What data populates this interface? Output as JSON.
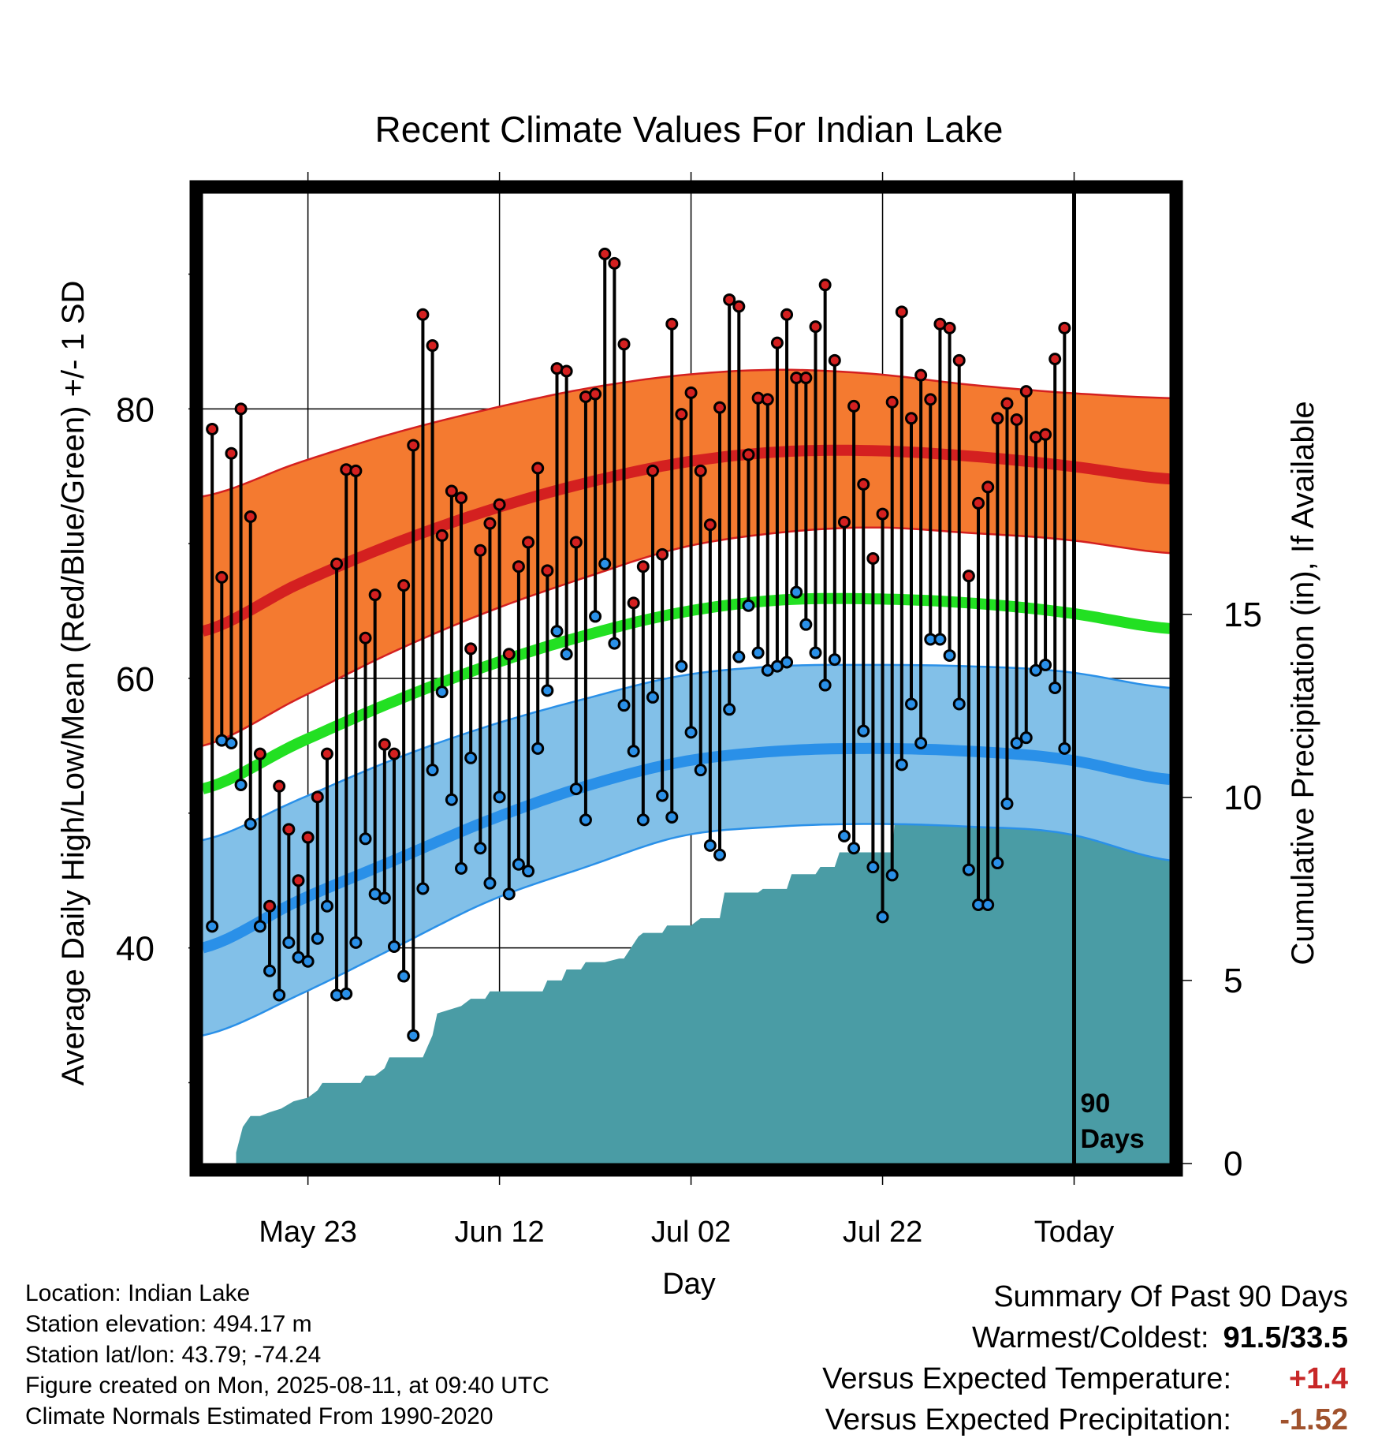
{
  "chart_data": {
    "type": "line",
    "title": "Recent Climate Values For Indian Lake",
    "xlabel": "Day",
    "ylabel": "Average Daily High/Low/Mean (Red/Blue/Green) +/- 1 SD",
    "y2label": "Cumulative Precipitation (in), If Available",
    "ylim": [
      24,
      96
    ],
    "y2lim": [
      0,
      26.5
    ],
    "xlim": [
      0,
      101
    ],
    "x_ticks": [
      {
        "day": 11,
        "label": "May 23"
      },
      {
        "day": 31,
        "label": "Jun 12"
      },
      {
        "day": 51,
        "label": "Jul 02"
      },
      {
        "day": 71,
        "label": "Jul 22"
      },
      {
        "day": 91,
        "label": "Today"
      }
    ],
    "y_ticks": [
      40,
      60,
      80
    ],
    "y_minor_ticks": [
      30,
      50,
      70,
      90
    ],
    "y2_ticks": [
      0,
      5,
      10,
      15
    ],
    "grid": true,
    "today_marker": {
      "day": 91,
      "label_line1": "90",
      "label_line2": "Days"
    },
    "normals": {
      "days": [
        0,
        10,
        20,
        30,
        40,
        50,
        60,
        70,
        80,
        90,
        101
      ],
      "high_mean": [
        63.5,
        67.0,
        70.0,
        72.5,
        74.5,
        76.0,
        76.8,
        76.9,
        76.5,
        75.8,
        74.8
      ],
      "high_upper": [
        73.5,
        76.0,
        78.2,
        80.0,
        81.5,
        82.5,
        82.9,
        82.6,
        81.8,
        81.2,
        80.8
      ],
      "high_lower": [
        55.0,
        58.5,
        62.0,
        65.0,
        67.5,
        69.7,
        70.8,
        71.2,
        70.8,
        70.3,
        69.3
      ],
      "low_mean": [
        40.0,
        43.5,
        46.5,
        49.5,
        52.0,
        53.8,
        54.6,
        54.8,
        54.6,
        54.0,
        52.5
      ],
      "low_upper": [
        48.0,
        51.0,
        54.0,
        56.5,
        58.5,
        60.2,
        60.9,
        61.0,
        60.9,
        60.5,
        59.3
      ],
      "low_lower": [
        33.5,
        36.5,
        40.0,
        43.5,
        46.0,
        48.3,
        49.0,
        49.2,
        49.0,
        48.5,
        46.5
      ],
      "mean_mean": [
        51.8,
        55.2,
        58.3,
        61.0,
        63.2,
        64.9,
        65.8,
        65.9,
        65.6,
        64.9,
        63.7
      ]
    },
    "series": [
      {
        "name": "High",
        "color": "#d42020",
        "values": [
          78.5,
          67.5,
          76.7,
          80.0,
          72.0,
          54.4,
          43.1,
          52.0,
          48.8,
          45.0,
          48.2,
          51.2,
          54.4,
          68.5,
          75.5,
          75.4,
          63.0,
          66.2,
          55.1,
          54.4,
          66.9,
          77.3,
          87.0,
          84.7,
          70.6,
          73.9,
          73.4,
          62.2,
          69.5,
          71.5,
          72.9,
          61.8,
          68.3,
          70.1,
          75.6,
          68.0,
          83.0,
          82.8,
          70.1,
          80.9,
          81.1,
          91.5,
          90.8,
          84.8,
          65.6,
          68.3,
          75.4,
          69.2,
          86.3,
          79.6,
          81.2,
          75.4,
          71.4,
          80.1,
          88.1,
          87.6,
          76.6,
          80.8,
          80.7,
          84.9,
          87.0,
          82.3,
          82.3,
          86.1,
          89.2,
          83.6,
          71.6,
          80.2,
          74.4,
          68.9,
          72.2,
          80.5,
          87.2,
          79.3,
          82.5,
          80.7,
          86.3,
          86.0,
          83.6,
          67.6,
          73.0,
          74.2,
          79.3,
          80.4,
          79.2,
          81.3,
          77.9,
          78.1,
          83.7,
          86.0
        ]
      },
      {
        "name": "Low",
        "color": "#2a90e8",
        "values": [
          41.6,
          55.4,
          55.2,
          52.1,
          49.2,
          41.6,
          38.3,
          36.5,
          40.4,
          39.3,
          39.0,
          40.7,
          43.1,
          36.5,
          36.6,
          40.4,
          48.1,
          44.0,
          43.7,
          40.1,
          37.9,
          33.5,
          44.4,
          53.2,
          59.0,
          51.0,
          45.9,
          54.1,
          47.4,
          44.8,
          51.2,
          44.0,
          46.2,
          45.7,
          54.8,
          59.1,
          63.5,
          61.8,
          51.8,
          49.5,
          64.6,
          68.5,
          62.6,
          58.0,
          54.6,
          49.5,
          58.6,
          51.3,
          49.7,
          60.9,
          56.0,
          53.2,
          47.6,
          46.9,
          57.7,
          61.6,
          65.4,
          61.9,
          60.6,
          60.9,
          61.2,
          66.4,
          64.0,
          61.9,
          59.5,
          61.4,
          48.3,
          47.4,
          56.1,
          46.0,
          42.3,
          45.4,
          53.6,
          58.1,
          55.2,
          62.9,
          62.9,
          61.7,
          58.1,
          45.8,
          43.2,
          43.2,
          46.3,
          50.7,
          55.2,
          55.6,
          60.6,
          61.0,
          59.3,
          54.8
        ]
      },
      {
        "name": "Cumulative Precipitation",
        "color": "#4a9ca5",
        "x": [
          3.5,
          4.2,
          5.0,
          6.0,
          7.0,
          8.2,
          9.5,
          11,
          12,
          12.5,
          14.5,
          16.5,
          17,
          18,
          19,
          19.5,
          23,
          24,
          24.5,
          27,
          28,
          29.5,
          30,
          35.5,
          36,
          37.5,
          38,
          39.5,
          40,
          42,
          43.5,
          44,
          45.5,
          46,
          48,
          48.5,
          51,
          52,
          54,
          54.5,
          58,
          58.5,
          61,
          61.5,
          64,
          64.5,
          66,
          66.5,
          72,
          72.5,
          75,
          75.5,
          81,
          81.5,
          85,
          85.5,
          101
        ],
        "values": [
          0.3,
          1.0,
          1.3,
          1.3,
          1.4,
          1.5,
          1.7,
          1.8,
          2.0,
          2.2,
          2.2,
          2.2,
          2.4,
          2.4,
          2.6,
          2.9,
          2.9,
          3.5,
          4.1,
          4.3,
          4.5,
          4.5,
          4.7,
          4.7,
          5.0,
          5.0,
          5.3,
          5.3,
          5.5,
          5.5,
          5.6,
          5.6,
          6.2,
          6.3,
          6.3,
          6.5,
          6.5,
          6.7,
          6.7,
          7.4,
          7.4,
          7.5,
          7.5,
          7.9,
          7.9,
          8.1,
          8.1,
          8.5,
          8.5,
          10.1,
          10.1,
          10.3,
          10.3,
          11.1,
          11.1,
          11.3,
          11.3
        ]
      }
    ]
  },
  "info": {
    "location": "Location: Indian Lake",
    "elevation": "Station elevation: 494.17 m",
    "latlon": "Station lat/lon: 43.79; -74.24",
    "created": "Figure created on Mon, 2025-08-11, at 09:40 UTC",
    "normals": "Climate Normals Estimated From 1990-2020"
  },
  "summary": {
    "heading": "Summary Of Past 90 Days",
    "warmest_label": "Warmest/Coldest:",
    "warmest_value": "91.5/33.5",
    "temp_label": "Versus Expected Temperature:",
    "temp_value": "+1.4",
    "temp_color": "#c82828",
    "precip_label": "Versus Expected Precipitation:",
    "precip_value": "-1.52",
    "precip_color": "#a0522d"
  },
  "colors": {
    "high_band": "#f47a30",
    "high_line": "#d42020",
    "low_band": "#82c0e8",
    "low_line": "#2a90e8",
    "mean_line": "#22e022",
    "precip_fill": "#4a9ca5"
  }
}
